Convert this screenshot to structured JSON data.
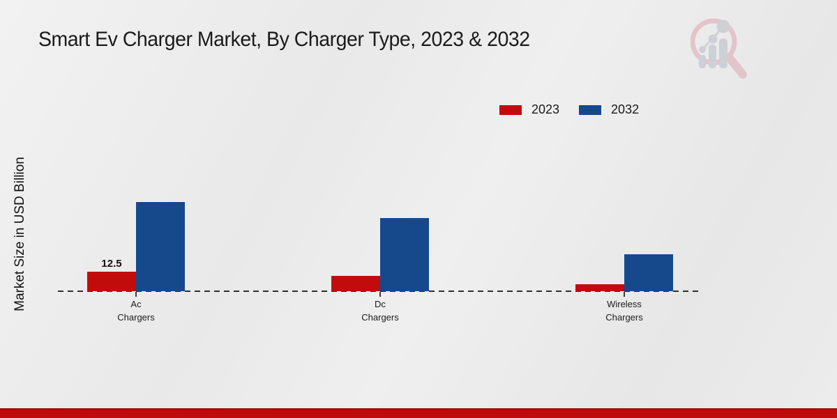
{
  "title": "Smart Ev Charger Market, By Charger Type, 2023 & 2032",
  "y_axis_label": "Market Size in USD Billion",
  "legend": {
    "items": [
      {
        "label": "2023",
        "color": "#c20c0c"
      },
      {
        "label": "2032",
        "color": "#15498c"
      }
    ]
  },
  "chart_data": {
    "type": "bar",
    "title": "Smart Ev Charger Market, By Charger Type, 2023 & 2032",
    "ylabel": "Market Size in USD Billion",
    "unit": "USD Billion",
    "categories": [
      "Ac Chargers",
      "Dc Chargers",
      "Wireless Chargers"
    ],
    "series": [
      {
        "name": "2023",
        "color": "#c20c0c",
        "values": [
          12.5,
          9.8,
          4.5
        ]
      },
      {
        "name": "2032",
        "color": "#15498c",
        "values": [
          57.0,
          47.0,
          23.7
        ]
      }
    ],
    "data_labels": [
      [
        "12.5",
        "",
        ""
      ],
      [
        "",
        "",
        ""
      ]
    ],
    "ylim": [
      0,
      60
    ],
    "grid": "dashed zero baseline only",
    "legend_position": "top-right"
  },
  "watermark": {
    "name": "market-research-magnifier-logo"
  },
  "footer": {
    "color": "#bf0b0b"
  }
}
